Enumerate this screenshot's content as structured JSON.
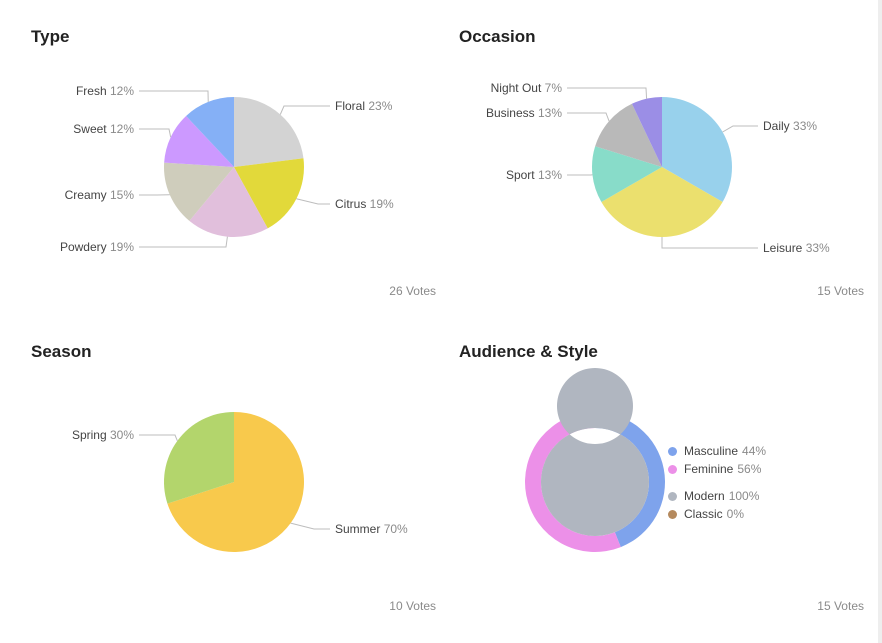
{
  "chart_data": [
    {
      "type": "pie",
      "title": "Type",
      "votes": "26 Votes",
      "slices": [
        {
          "label": "Floral",
          "value": 23,
          "pct": "23%",
          "color": "#d3d3d3"
        },
        {
          "label": "Citrus",
          "value": 19,
          "pct": "19%",
          "color": "#e2d93a"
        },
        {
          "label": "Powdery",
          "value": 19,
          "pct": "19%",
          "color": "#e1bfdc"
        },
        {
          "label": "Creamy",
          "value": 15,
          "pct": "15%",
          "color": "#cfcdbc"
        },
        {
          "label": "Sweet",
          "value": 12,
          "pct": "12%",
          "color": "#cc99ff"
        },
        {
          "label": "Fresh",
          "value": 12,
          "pct": "12%",
          "color": "#85b0f6"
        }
      ]
    },
    {
      "type": "pie",
      "title": "Occasion",
      "votes": "15 Votes",
      "slices": [
        {
          "label": "Daily",
          "value": 33,
          "pct": "33%",
          "color": "#98d1ec"
        },
        {
          "label": "Leisure",
          "value": 33,
          "pct": "33%",
          "color": "#ebe06e"
        },
        {
          "label": "Sport",
          "value": 13,
          "pct": "13%",
          "color": "#88dcc9"
        },
        {
          "label": "Business",
          "value": 13,
          "pct": "13%",
          "color": "#b9b9b9"
        },
        {
          "label": "Night Out",
          "value": 7,
          "pct": "7%",
          "color": "#9b8ee6"
        }
      ]
    },
    {
      "type": "pie",
      "title": "Season",
      "votes": "10 Votes",
      "slices": [
        {
          "label": "Summer",
          "value": 70,
          "pct": "70%",
          "color": "#f8c94c"
        },
        {
          "label": "Spring",
          "value": 30,
          "pct": "30%",
          "color": "#b3d56c"
        }
      ]
    },
    {
      "type": "donut",
      "title": "Audience & Style",
      "votes": "15 Votes",
      "outer_ring": [
        {
          "label": "Masculine",
          "value": 44,
          "pct": "44%",
          "color": "#7ea3ec"
        },
        {
          "label": "Feminine",
          "value": 56,
          "pct": "56%",
          "color": "#ec90e8"
        }
      ],
      "inner_ring": [
        {
          "label": "Modern",
          "value": 100,
          "pct": "100%",
          "color": "#b0b6c0"
        },
        {
          "label": "Classic",
          "value": 0,
          "pct": "0%",
          "color": "#b58a5e"
        }
      ]
    }
  ]
}
